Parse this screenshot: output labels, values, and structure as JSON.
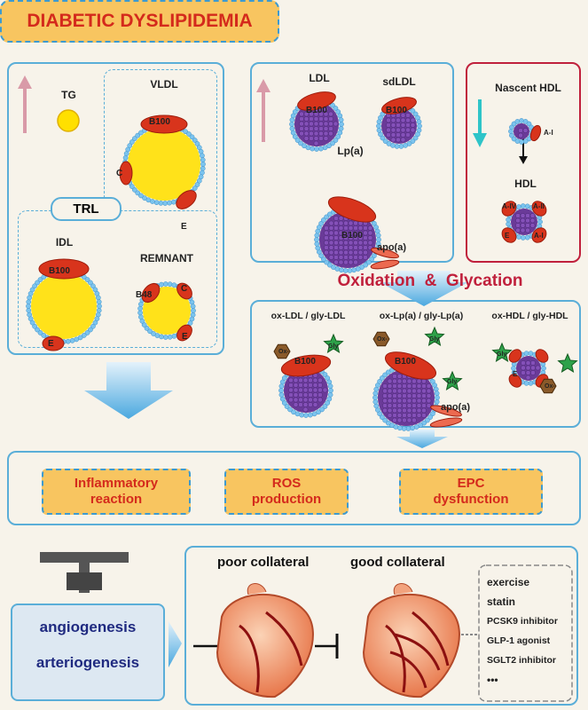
{
  "title": "DIABETIC DYSLIPIDEMIA",
  "trl": {
    "tg": "TG",
    "vldl": "VLDL",
    "trl_label": "TRL",
    "idl": "IDL",
    "remnant": "REMNANT"
  },
  "ldl": {
    "ldl": "LDL",
    "sdldl": "sdLDL",
    "lpa": "Lp(a)",
    "apoa": "apo(a)"
  },
  "hdl": {
    "nascent": "Nascent HDL",
    "hdl": "HDL"
  },
  "apo": {
    "b100": "B100",
    "b48": "B48",
    "c": "C",
    "e": "E",
    "a1": "A-I",
    "a2": "A-II",
    "a4": "A-IV",
    "ox": "Ox-",
    "gly": "Gly"
  },
  "modification": {
    "title": "Oxidation  &  Glycation",
    "items": [
      "ox-LDL / gly-LDL",
      "ox-Lp(a) / gly-Lp(a)",
      "ox-HDL / gly-HDL"
    ]
  },
  "effects": [
    {
      "line1": "Inflammatory",
      "line2": "reaction"
    },
    {
      "line1": "ROS",
      "line2": "production"
    },
    {
      "line1": "EPC",
      "line2": "dysfunction"
    }
  ],
  "outcome": {
    "angiogenesis": "angiogenesis",
    "arteriogenesis": "arteriogenesis",
    "poor": "poor collateral",
    "good": "good collateral"
  },
  "treatments": [
    "exercise",
    "statin",
    "PCSK9 inhibitor",
    "GLP-1 agonist",
    "SGLT2 inhibitor",
    "•••"
  ],
  "colors": {
    "background": "#f7f3ea",
    "panel_border": "#5aaed8",
    "hdl_border": "#c0203c",
    "title_fill": "#f8c560",
    "title_text": "#d42a1c",
    "increase_arrow": "#d99aa8",
    "decrease_arrow": "#2ec4c8"
  }
}
